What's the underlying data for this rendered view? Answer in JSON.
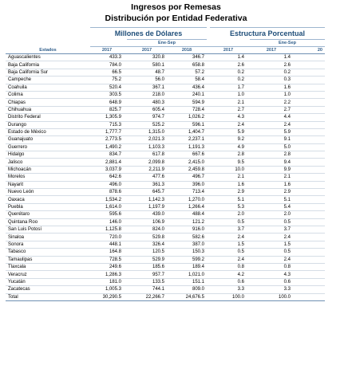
{
  "title": "Ingresos por Remesas",
  "subtitle": "Distribución por Entidad Federativa",
  "group_millones": "Millones de Dólares",
  "group_estructura": "Estructura Porcentual",
  "period": "Ene-Sep",
  "col_estados": "Estados",
  "years": {
    "a": "2017",
    "b": "2017",
    "c": "2018",
    "d": "2017",
    "e": "2017",
    "f": "20"
  },
  "rows": [
    {
      "estado": "Aguascalientes",
      "v1": "433.3",
      "v2": "320.8",
      "v3": "346.7",
      "p1": "1.4",
      "p2": "1.4"
    },
    {
      "estado": "Baja California",
      "v1": "784.0",
      "v2": "580.1",
      "v3": "658.8",
      "p1": "2.6",
      "p2": "2.6"
    },
    {
      "estado": "Baja California Sur",
      "v1": "66.5",
      "v2": "48.7",
      "v3": "57.2",
      "p1": "0.2",
      "p2": "0.2"
    },
    {
      "estado": "Campeche",
      "v1": "75.2",
      "v2": "56.0",
      "v3": "58.4",
      "p1": "0.2",
      "p2": "0.3"
    },
    {
      "estado": "Coahuila",
      "v1": "520.4",
      "v2": "367.1",
      "v3": "436.4",
      "p1": "1.7",
      "p2": "1.6"
    },
    {
      "estado": "Colima",
      "v1": "303.5",
      "v2": "218.0",
      "v3": "240.1",
      "p1": "1.0",
      "p2": "1.0"
    },
    {
      "estado": "Chiapas",
      "v1": "648.9",
      "v2": "480.3",
      "v3": "594.9",
      "p1": "2.1",
      "p2": "2.2"
    },
    {
      "estado": "Chihuahua",
      "v1": "825.7",
      "v2": "605.4",
      "v3": "728.4",
      "p1": "2.7",
      "p2": "2.7"
    },
    {
      "estado": "Distrito Federal",
      "v1": "1,305.9",
      "v2": "974.7",
      "v3": "1,026.2",
      "p1": "4.3",
      "p2": "4.4"
    },
    {
      "estado": "Durango",
      "v1": "715.3",
      "v2": "525.2",
      "v3": "596.1",
      "p1": "2.4",
      "p2": "2.4"
    },
    {
      "estado": "Estado de México",
      "v1": "1,777.7",
      "v2": "1,315.0",
      "v3": "1,404.7",
      "p1": "5.9",
      "p2": "5.9"
    },
    {
      "estado": "Guanajuato",
      "v1": "2,773.5",
      "v2": "2,021.3",
      "v3": "2,237.1",
      "p1": "9.2",
      "p2": "9.1"
    },
    {
      "estado": "Guerrero",
      "v1": "1,490.2",
      "v2": "1,103.3",
      "v3": "1,191.3",
      "p1": "4.9",
      "p2": "5.0"
    },
    {
      "estado": "Hidalgo",
      "v1": "834.7",
      "v2": "617.8",
      "v3": "667.6",
      "p1": "2.8",
      "p2": "2.8"
    },
    {
      "estado": "Jalisco",
      "v1": "2,881.4",
      "v2": "2,099.8",
      "v3": "2,415.0",
      "p1": "9.5",
      "p2": "9.4"
    },
    {
      "estado": "Michoacán",
      "v1": "3,037.9",
      "v2": "2,211.9",
      "v3": "2,459.8",
      "p1": "10.0",
      "p2": "9.9"
    },
    {
      "estado": "Morelos",
      "v1": "642.6",
      "v2": "477.6",
      "v3": "496.7",
      "p1": "2.1",
      "p2": "2.1"
    },
    {
      "estado": "Nayarit",
      "v1": "496.0",
      "v2": "361.3",
      "v3": "396.0",
      "p1": "1.6",
      "p2": "1.6"
    },
    {
      "estado": "Nuevo León",
      "v1": "878.6",
      "v2": "645.7",
      "v3": "713.4",
      "p1": "2.9",
      "p2": "2.9"
    },
    {
      "estado": "Oaxaca",
      "v1": "1,534.2",
      "v2": "1,142.3",
      "v3": "1,270.0",
      "p1": "5.1",
      "p2": "5.1"
    },
    {
      "estado": "Puebla",
      "v1": "1,614.0",
      "v2": "1,197.9",
      "v3": "1,266.4",
      "p1": "5.3",
      "p2": "5.4"
    },
    {
      "estado": "Querétaro",
      "v1": "595.6",
      "v2": "439.0",
      "v3": "488.4",
      "p1": "2.0",
      "p2": "2.0"
    },
    {
      "estado": "Quintana Roo",
      "v1": "146.0",
      "v2": "106.9",
      "v3": "121.2",
      "p1": "0.5",
      "p2": "0.5"
    },
    {
      "estado": "San Luis Potosí",
      "v1": "1,125.8",
      "v2": "824.0",
      "v3": "916.0",
      "p1": "3.7",
      "p2": "3.7"
    },
    {
      "estado": "Sinaloa",
      "v1": "720.0",
      "v2": "529.8",
      "v3": "582.6",
      "p1": "2.4",
      "p2": "2.4"
    },
    {
      "estado": "Sonora",
      "v1": "448.1",
      "v2": "326.4",
      "v3": "387.0",
      "p1": "1.5",
      "p2": "1.5"
    },
    {
      "estado": "Tabasco",
      "v1": "164.8",
      "v2": "120.5",
      "v3": "150.3",
      "p1": "0.5",
      "p2": "0.5"
    },
    {
      "estado": "Tamaulipas",
      "v1": "728.5",
      "v2": "529.9",
      "v3": "599.2",
      "p1": "2.4",
      "p2": "2.4"
    },
    {
      "estado": "Tlaxcala",
      "v1": "249.6",
      "v2": "185.6",
      "v3": "189.4",
      "p1": "0.8",
      "p2": "0.8"
    },
    {
      "estado": "Veracruz",
      "v1": "1,286.3",
      "v2": "957.7",
      "v3": "1,021.0",
      "p1": "4.2",
      "p2": "4.3"
    },
    {
      "estado": "Yucatán",
      "v1": "181.0",
      "v2": "133.5",
      "v3": "151.1",
      "p1": "0.6",
      "p2": "0.6"
    },
    {
      "estado": "Zacatecas",
      "v1": "1,005.3",
      "v2": "744.1",
      "v3": "809.0",
      "p1": "3.3",
      "p2": "3.3"
    },
    {
      "estado": "Total",
      "v1": "30,290.5",
      "v2": "22,266.7",
      "v3": "24,676.5",
      "p1": "100.0",
      "p2": "100.0"
    }
  ]
}
